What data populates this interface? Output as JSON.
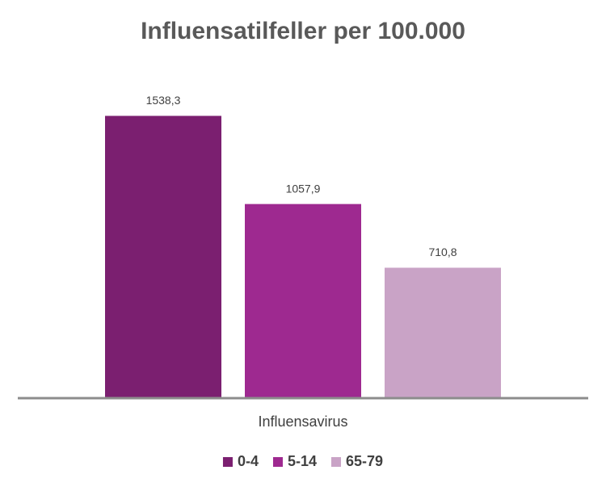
{
  "chart_data": {
    "type": "bar",
    "title": "Influensatilfeller per 100.000",
    "categories": [
      "Influensavirus"
    ],
    "series": [
      {
        "name": "0-4",
        "color": "#7b1f70",
        "values": [
          1538.3
        ],
        "value_labels": [
          "1538,3"
        ]
      },
      {
        "name": "5-14",
        "color": "#9e2990",
        "values": [
          1057.9
        ],
        "value_labels": [
          "1057,9"
        ]
      },
      {
        "name": "65-79",
        "color": "#c9a3c6",
        "values": [
          710.8
        ],
        "value_labels": [
          "710,8"
        ]
      }
    ],
    "ylim": [
      0,
      1800
    ],
    "legend": "bottom"
  }
}
